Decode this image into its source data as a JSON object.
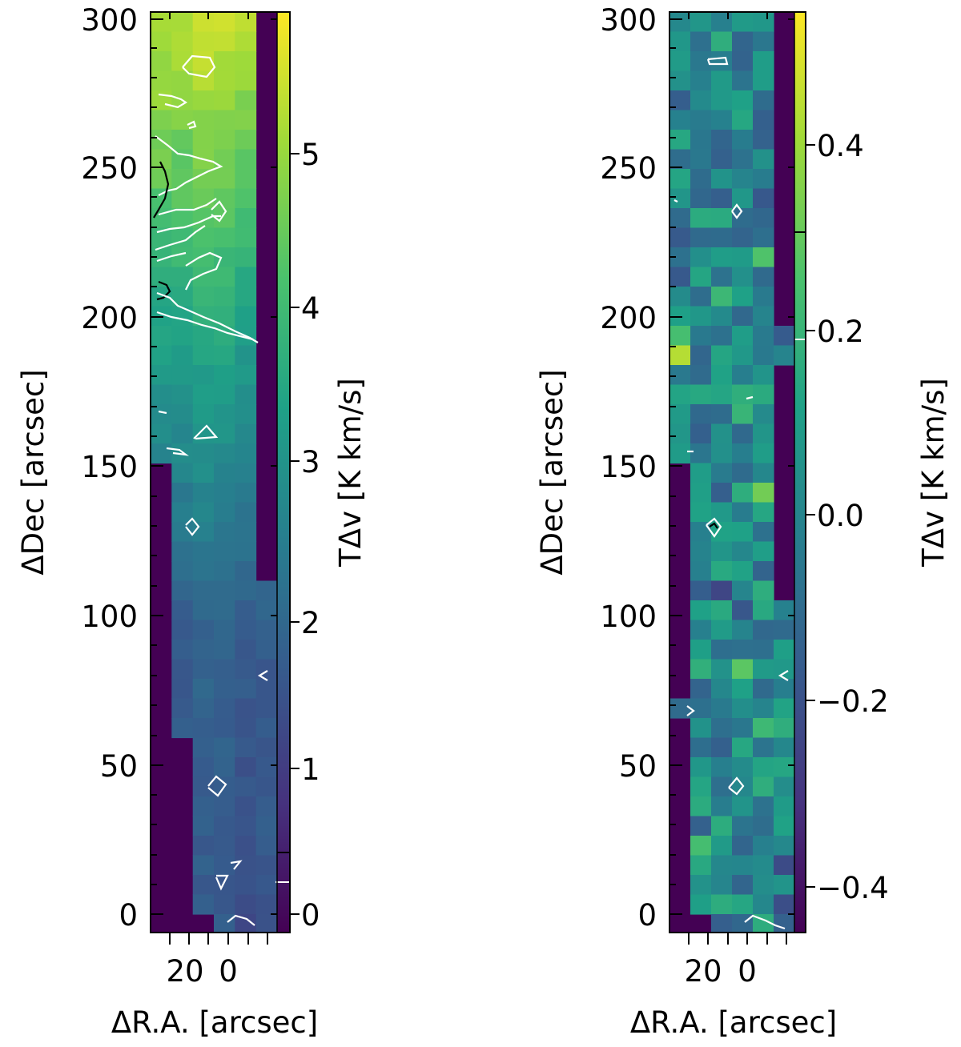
{
  "chart_data": [
    {
      "type": "heatmap",
      "panel": "left",
      "title": "",
      "xlabel": "ΔR.A. [arcsec]",
      "ylabel": "ΔDec [arcsec]",
      "colorbar_label": "TΔv [K km/s]",
      "x_ticks": [
        "20",
        "0"
      ],
      "y_ticks": [
        "0",
        "50",
        "100",
        "150",
        "200",
        "250",
        "300"
      ],
      "cbar_ticks": [
        "0",
        "1",
        "2",
        "3",
        "4",
        "5"
      ],
      "ylim": [
        -5,
        305
      ],
      "cbar_range": [
        0,
        5.85
      ],
      "colormap": [
        "#440154",
        "#46327e",
        "#365c8d",
        "#277f8e",
        "#1fa187",
        "#4ac16d",
        "#a0da39",
        "#fde725"
      ],
      "background_value_color": "#440154",
      "contour_colors": [
        "#ffffff",
        "#000000"
      ],
      "value_trend": {
        "dec": [
          -5,
          20,
          50,
          80,
          100,
          150,
          200,
          250,
          305
        ],
        "intensity": [
          1.45,
          1.55,
          1.65,
          1.7,
          1.75,
          2.6,
          3.4,
          4.4,
          5.3
        ]
      }
    },
    {
      "type": "heatmap",
      "panel": "right",
      "title": "",
      "xlabel": "ΔR.A. [arcsec]",
      "ylabel": "ΔDec [arcsec]",
      "colorbar_label": "TΔv [K km/s]",
      "x_ticks": [
        "20",
        "0"
      ],
      "y_ticks": [
        "0",
        "50",
        "100",
        "150",
        "200",
        "250",
        "300"
      ],
      "cbar_ticks": [
        "−0.4",
        "−0.2",
        "0.0",
        "0.2",
        "0.4"
      ],
      "ylim": [
        -5,
        305
      ],
      "cbar_range": [
        -0.45,
        0.55
      ],
      "colormap": [
        "#440154",
        "#46327e",
        "#365c8d",
        "#277f8e",
        "#1fa187",
        "#4ac16d",
        "#a0da39",
        "#fde725"
      ],
      "background_value_color": "#440154",
      "contour_colors": [
        "#ffffff",
        "#000000"
      ],
      "value_trend": {
        "dec": [
          -5,
          100,
          200,
          305
        ],
        "intensity": [
          0.0,
          0.0,
          0.0,
          0.0
        ]
      }
    }
  ]
}
